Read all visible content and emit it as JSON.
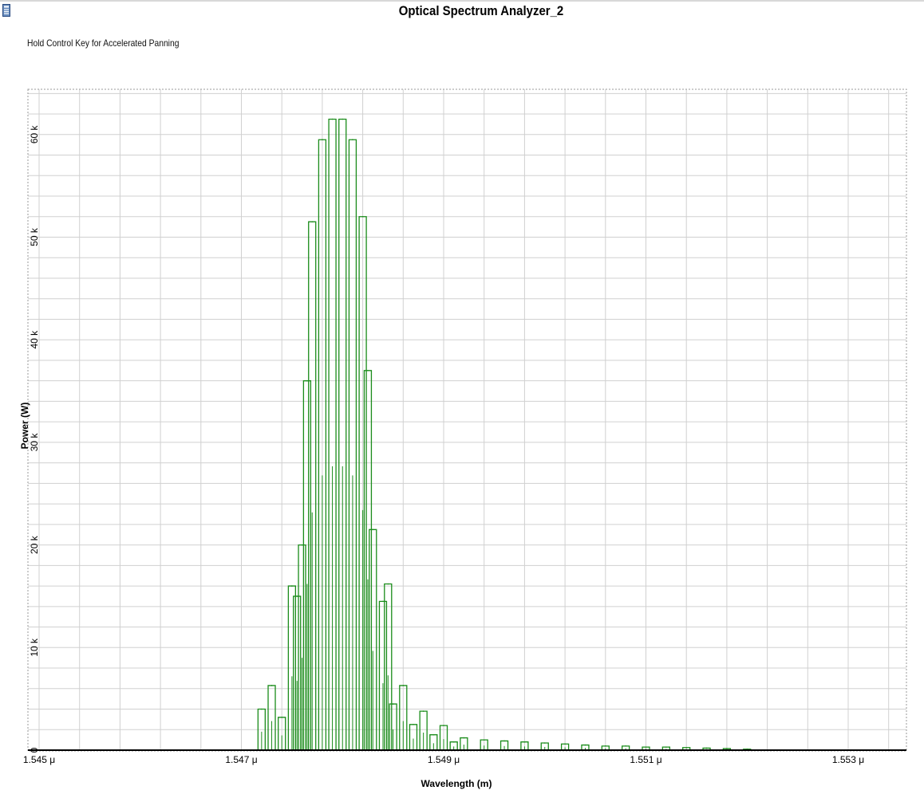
{
  "window": {
    "icon": "document-icon",
    "hint": "Hold Control Key for Accelerated Panning"
  },
  "colors": {
    "trace": "#1a8c1a",
    "grid": "#d0d0d0",
    "plot_border": "#9a9a9a",
    "baseline": "#000000"
  },
  "chart_data": {
    "type": "line",
    "title": "Optical Spectrum Analyzer_2",
    "xlabel": "Wavelength (m)",
    "ylabel": "Power (W)",
    "xlim": [
      1.545,
      1.5535
    ],
    "ylim": [
      0,
      64000
    ],
    "grid": true,
    "x_ticks": [
      {
        "value": 1.545,
        "label": "1.545 μ"
      },
      {
        "value": 1.547,
        "label": "1.547 μ"
      },
      {
        "value": 1.549,
        "label": "1.549 μ"
      },
      {
        "value": 1.551,
        "label": "1.551 μ"
      },
      {
        "value": 1.553,
        "label": "1.553 μ"
      }
    ],
    "y_ticks": [
      {
        "value": 0,
        "label": "0"
      },
      {
        "value": 10000,
        "label": "10 k"
      },
      {
        "value": 20000,
        "label": "20 k"
      },
      {
        "value": 30000,
        "label": "30 k"
      },
      {
        "value": 40000,
        "label": "40 k"
      },
      {
        "value": 50000,
        "label": "50 k"
      },
      {
        "value": 60000,
        "label": "60 k"
      }
    ],
    "series": [
      {
        "values": [
          [
            1.5472,
            4000
          ],
          [
            1.5473,
            6300
          ],
          [
            1.5474,
            3200
          ],
          [
            1.5475,
            16000
          ],
          [
            1.54755,
            15000
          ],
          [
            1.5476,
            20000
          ],
          [
            1.54765,
            36000
          ],
          [
            1.5477,
            51500
          ],
          [
            1.5478,
            59500
          ],
          [
            1.5479,
            61500
          ],
          [
            1.548,
            61500
          ],
          [
            1.5481,
            59500
          ],
          [
            1.5482,
            52000
          ],
          [
            1.54825,
            37000
          ],
          [
            1.5483,
            21500
          ],
          [
            1.5484,
            14500
          ],
          [
            1.54845,
            16200
          ],
          [
            1.5485,
            4500
          ],
          [
            1.5486,
            6300
          ],
          [
            1.5487,
            2500
          ],
          [
            1.5488,
            3800
          ],
          [
            1.5489,
            1500
          ],
          [
            1.549,
            2400
          ],
          [
            1.5491,
            800
          ],
          [
            1.5492,
            1200
          ],
          [
            1.5494,
            1000
          ],
          [
            1.5496,
            900
          ],
          [
            1.5498,
            800
          ],
          [
            1.55,
            700
          ],
          [
            1.5502,
            600
          ],
          [
            1.5504,
            500
          ],
          [
            1.5506,
            400
          ],
          [
            1.5508,
            400
          ],
          [
            1.551,
            300
          ],
          [
            1.5512,
            300
          ],
          [
            1.5514,
            250
          ],
          [
            1.5516,
            200
          ],
          [
            1.5518,
            150
          ],
          [
            1.552,
            100
          ]
        ]
      }
    ]
  }
}
